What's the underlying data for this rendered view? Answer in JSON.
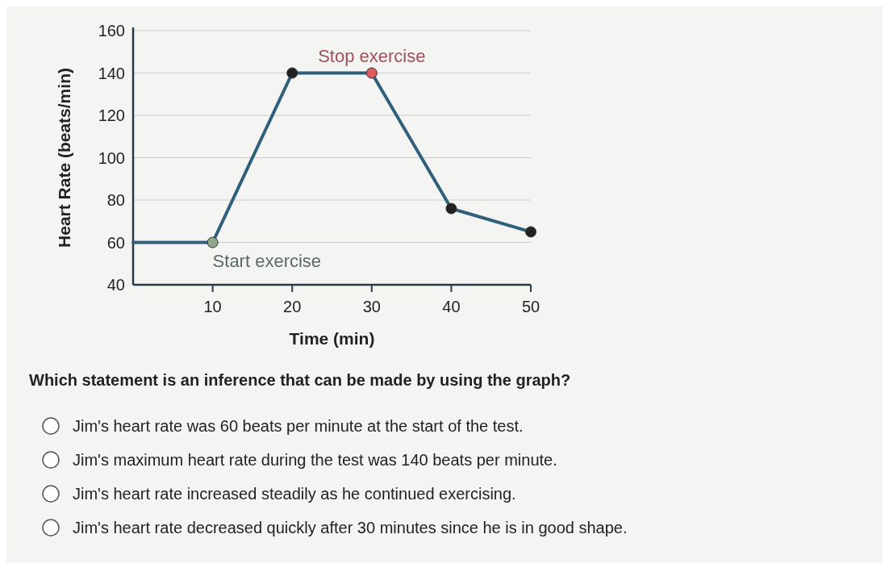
{
  "chart_data": {
    "type": "line",
    "xlabel": "Time (min)",
    "ylabel": "Heart Rate (beats/min)",
    "x": [
      0,
      10,
      20,
      30,
      40,
      50
    ],
    "series": [
      {
        "color": "#2f5f7a",
        "values": [
          60,
          60,
          140,
          140,
          76,
          65
        ],
        "marker": "none"
      },
      {
        "type": "scatter",
        "x": [
          10,
          20,
          30,
          40,
          50
        ],
        "colors": [
          "#8fa88a",
          "#222222",
          "#e05a5a",
          "#222222",
          "#222222"
        ],
        "values": [
          60,
          140,
          140,
          76,
          65
        ],
        "marker": "circle"
      }
    ],
    "xlim": [
      0,
      50
    ],
    "xticks": [
      10,
      20,
      30,
      40,
      50
    ],
    "ylim": [
      40,
      160
    ],
    "yticks": [
      40,
      60,
      80,
      100,
      120,
      140,
      160
    ],
    "grid": "y",
    "annotations": [
      {
        "text": "Start exercise",
        "x": 10,
        "y": 60
      },
      {
        "text": "Stop exercise",
        "x": 30,
        "y": 140
      },
      "Which statement is an inference that can be made by using the graph?",
      "Jim's heart rate was 60 beats per minute at the start of the test.",
      "Jim's maximum heart rate during the test was 140 beats per minute.",
      "Jim's heart rate increased steadily as he continued exercising.",
      "Jim's heart rate decreased quickly after 30 minutes since he is in good shape."
    ]
  }
}
